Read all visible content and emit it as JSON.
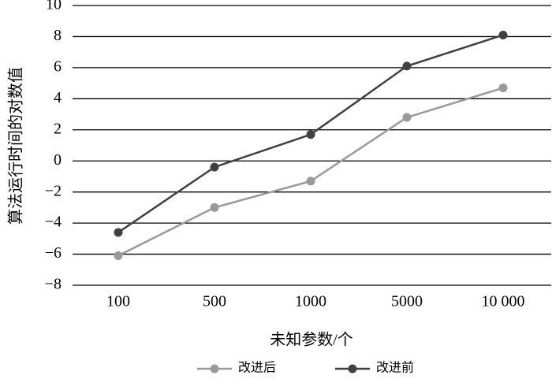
{
  "chart_data": {
    "type": "line",
    "x_label": "未知参数/个",
    "y_label": "算法运行时间的对数值",
    "categories": [
      "100",
      "500",
      "1000",
      "5000",
      "10 000"
    ],
    "series": [
      {
        "name": "改进后",
        "color": "#999999",
        "values": [
          -6.1,
          -3.0,
          -1.3,
          2.8,
          4.7
        ]
      },
      {
        "name": "改进前",
        "color": "#404040",
        "values": [
          -4.6,
          -0.4,
          1.7,
          6.1,
          8.1
        ]
      }
    ],
    "ylim": [
      -8,
      10
    ],
    "yticks": [
      {
        "value": -8,
        "label": "−8"
      },
      {
        "value": -6,
        "label": "−6"
      },
      {
        "value": -4,
        "label": "−4"
      },
      {
        "value": -2,
        "label": "−2"
      },
      0,
      2,
      4,
      6,
      8,
      10
    ],
    "grid": true
  }
}
